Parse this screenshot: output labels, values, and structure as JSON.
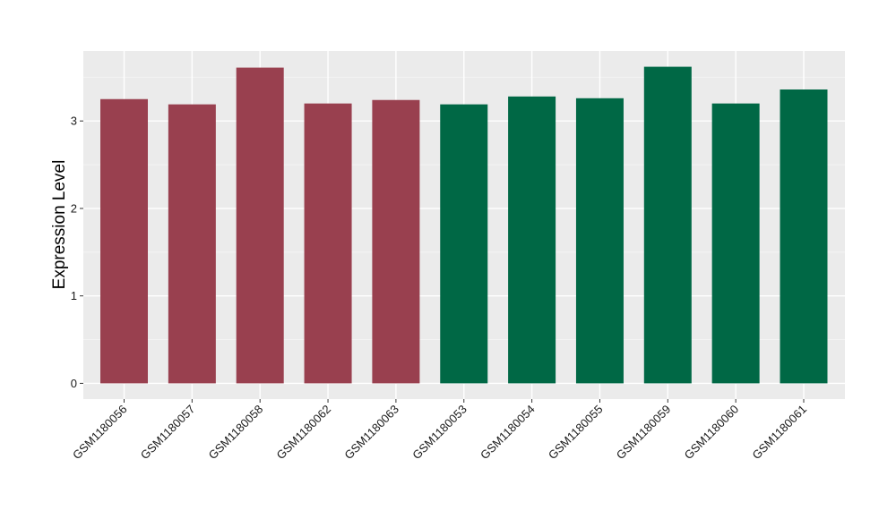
{
  "chart_data": {
    "type": "bar",
    "title": "",
    "xlabel": "",
    "ylabel": "Expression Level",
    "ylim": [
      -0.18,
      3.8
    ],
    "yticks": [
      0,
      1,
      2,
      3
    ],
    "grid": true,
    "legend": "none",
    "categories": [
      "GSM1180056",
      "GSM1180057",
      "GSM1180058",
      "GSM1180062",
      "GSM1180063",
      "GSM1180053",
      "GSM1180054",
      "GSM1180055",
      "GSM1180059",
      "GSM1180060",
      "GSM1180061"
    ],
    "values": [
      3.25,
      3.19,
      3.61,
      3.2,
      3.24,
      3.19,
      3.28,
      3.26,
      3.62,
      3.2,
      3.36
    ],
    "bar_colors": [
      "#99404f",
      "#99404f",
      "#99404f",
      "#99404f",
      "#99404f",
      "#006845",
      "#006845",
      "#006845",
      "#006845",
      "#006845",
      "#006845"
    ]
  },
  "colors": {
    "panel_background": "#ebebeb",
    "grid_major": "#ffffff",
    "grid_minor": "#f5f5f5",
    "tick": "#333333"
  }
}
